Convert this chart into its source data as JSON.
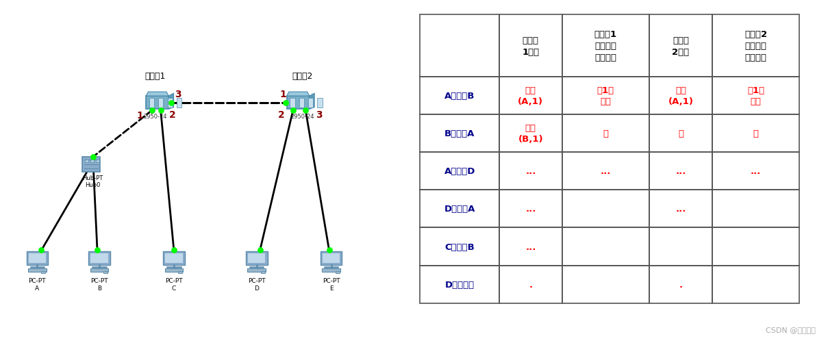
{
  "bg_color": "#ffffff",
  "network": {
    "switch1_label": "交换机1",
    "switch2_label": "交换机2",
    "switch1_sublabel": "2950-24",
    "switch2_sublabel": "2950-24",
    "hub_label": "Hub-PT\nHub0",
    "dot_color": "#00ff00",
    "line_color": "#000000",
    "port_num_color": "#8b0000"
  },
  "table": {
    "col_headers": [
      "",
      "交换表\n1变化",
      "交换机1\n向哪些接\n口转发帧",
      "交换表\n2变化",
      "交换机2\n向哪些接\n口转发帧"
    ],
    "row_labels": [
      "A发送给B",
      "B发送给A",
      "A发送给D",
      "D发送给A",
      "C发送给B",
      "D关机离线"
    ],
    "cell_contents": [
      [
        "增加\n(A,1)",
        "除1外\n所有",
        "增加\n(A,1)",
        "除1外\n所有"
      ],
      [
        "增加\n(B,1)",
        "无",
        "无",
        "无"
      ],
      [
        "...",
        "...",
        "...",
        "..."
      ],
      [
        "...",
        "",
        "...",
        ""
      ],
      [
        "...",
        "",
        "",
        ""
      ],
      [
        ".",
        "",
        ".",
        ""
      ]
    ],
    "row_label_color": "#00008b",
    "cell_answer_color": "#ff0000",
    "header_color": "#000000",
    "border_color": "#555555"
  },
  "watermark": "CSDN @盒马盒马",
  "watermark_color": "#aaaaaa"
}
